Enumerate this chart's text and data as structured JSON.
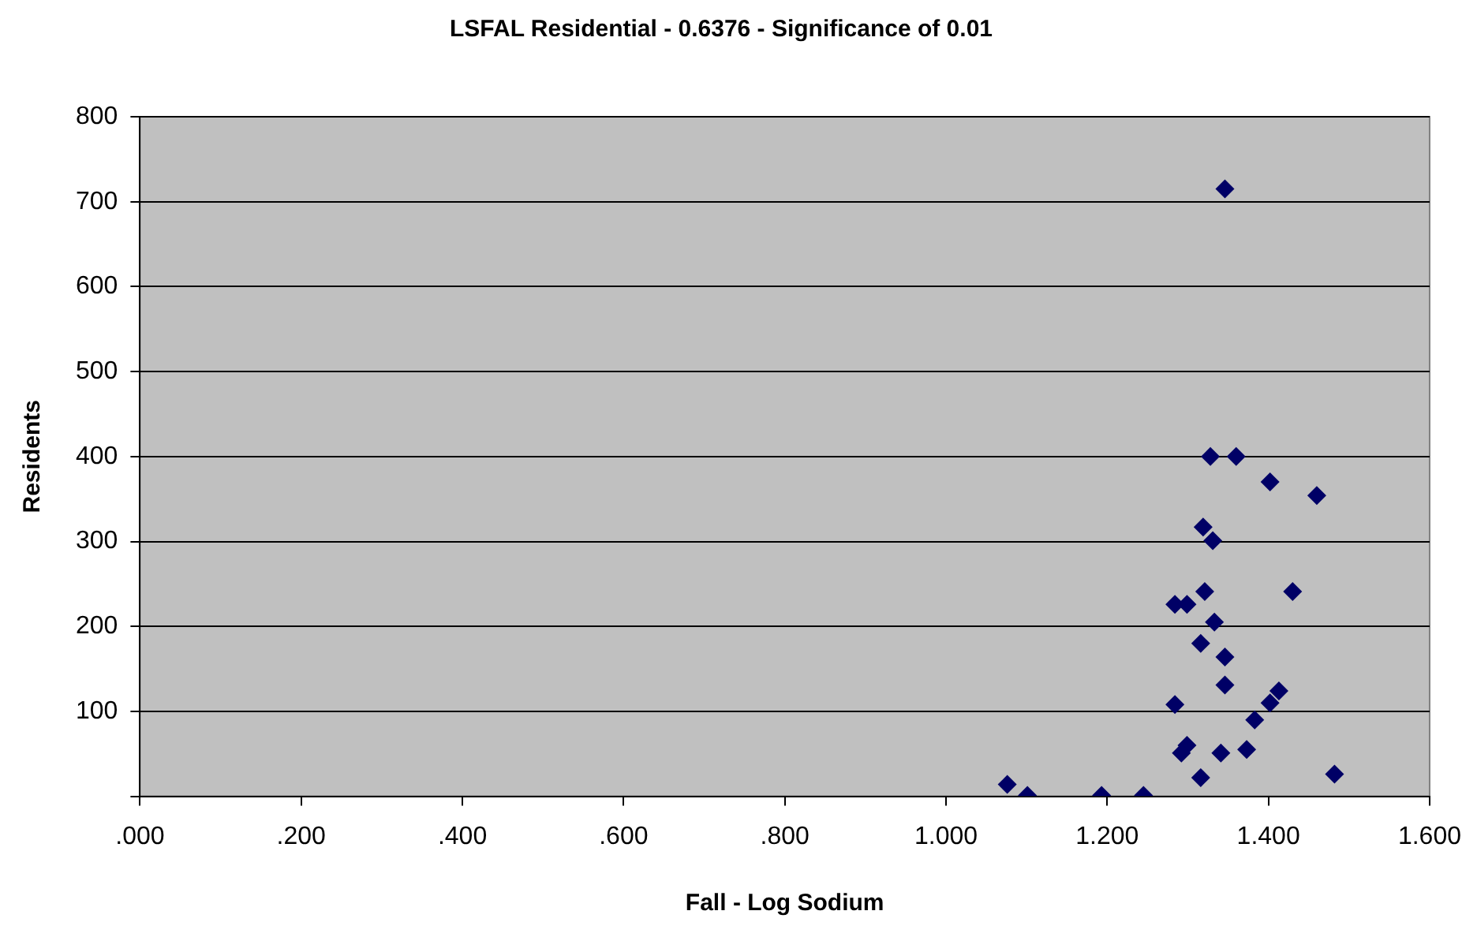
{
  "chart_data": {
    "type": "scatter",
    "title": "LSFAL Residential - 0.6376 - Significance of 0.01",
    "xlabel": "Fall - Log Sodium",
    "ylabel": "Residents",
    "series": [
      {
        "color": "#000066",
        "x": [
          1.346,
          1.328,
          1.36,
          1.402,
          1.46,
          1.319,
          1.331,
          1.321,
          1.43,
          1.284,
          1.299,
          1.333,
          1.316,
          1.346,
          1.346,
          1.413,
          1.402,
          1.284,
          1.383,
          1.299,
          1.292,
          1.341,
          1.373,
          1.316,
          1.482,
          1.076,
          1.101,
          1.193,
          1.245
        ],
        "values": [
          715,
          400,
          400,
          370,
          354,
          317,
          301,
          241,
          241,
          226,
          226,
          205,
          180,
          164,
          131,
          124,
          110,
          108,
          90,
          60,
          51,
          51,
          55,
          22,
          26,
          14,
          1,
          1,
          1
        ]
      }
    ],
    "xlim": [
      0,
      1.6
    ],
    "xticks": [
      {
        "value": 0,
        "label": ".000"
      },
      {
        "value": 0.2,
        "label": ".200"
      },
      {
        "value": 0.4,
        "label": ".400"
      },
      {
        "value": 0.6,
        "label": ".600"
      },
      {
        "value": 0.8,
        "label": ".800"
      },
      {
        "value": 1.0,
        "label": "1.000"
      },
      {
        "value": 1.2,
        "label": "1.200"
      },
      {
        "value": 1.4,
        "label": "1.400"
      },
      {
        "value": 1.6,
        "label": "1.600"
      }
    ],
    "ylim": [
      0,
      800
    ],
    "yticks": [
      {
        "value": 0,
        "label": null
      },
      100,
      200,
      300,
      400,
      500,
      600,
      700,
      800
    ],
    "grid": "y",
    "legend": false,
    "marker": "diamond"
  }
}
